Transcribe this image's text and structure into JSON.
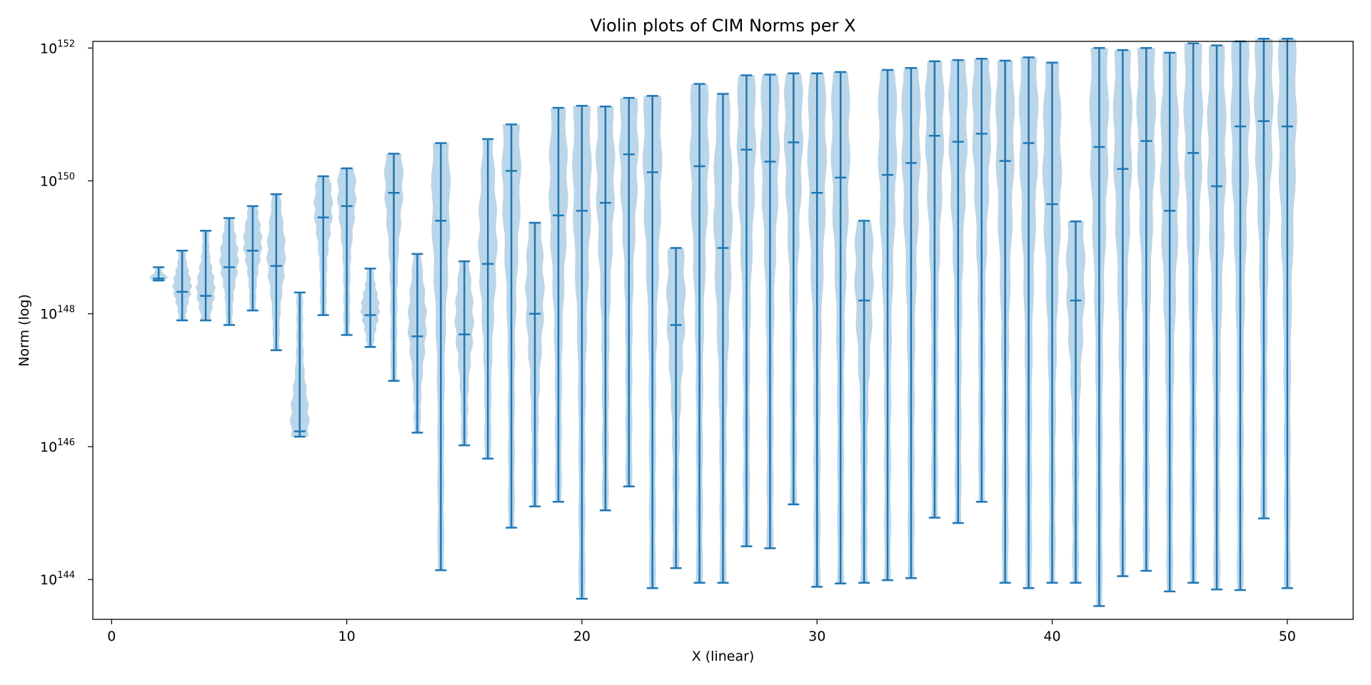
{
  "chart_data": {
    "type": "violin",
    "title": "Violin plots of CIM Norms per X",
    "xlabel": "X (linear)",
    "ylabel": "Norm (log)",
    "xlim": [
      -0.8,
      52.8
    ],
    "ylim_log10": [
      143.4,
      152.1
    ],
    "yscale": "log",
    "x_ticks": [
      0,
      10,
      20,
      30,
      40,
      50
    ],
    "y_ticks": [
      {
        "base": "10",
        "exp": "144"
      },
      {
        "base": "10",
        "exp": "146"
      },
      {
        "base": "10",
        "exp": "148"
      },
      {
        "base": "10",
        "exp": "150"
      },
      {
        "base": "10",
        "exp": "152"
      }
    ],
    "grid": false,
    "colors": {
      "body": "#1f77b4",
      "body_alpha": 0.3,
      "lines": "#1f77b4"
    },
    "violins": [
      {
        "x": 2,
        "min": 148.5,
        "median": 148.53,
        "max": 148.7
      },
      {
        "x": 3,
        "min": 147.9,
        "median": 148.33,
        "max": 148.95
      },
      {
        "x": 4,
        "min": 147.9,
        "median": 148.27,
        "max": 149.25
      },
      {
        "x": 5,
        "min": 147.83,
        "median": 148.7,
        "max": 149.44
      },
      {
        "x": 6,
        "min": 148.05,
        "median": 148.95,
        "max": 149.62
      },
      {
        "x": 7,
        "min": 147.45,
        "median": 148.72,
        "max": 149.8
      },
      {
        "x": 8,
        "min": 146.15,
        "median": 146.23,
        "max": 148.32
      },
      {
        "x": 9,
        "min": 147.98,
        "median": 149.45,
        "max": 150.07
      },
      {
        "x": 10,
        "min": 147.68,
        "median": 149.62,
        "max": 150.19
      },
      {
        "x": 11,
        "min": 147.5,
        "median": 147.98,
        "max": 148.68
      },
      {
        "x": 12,
        "min": 146.99,
        "median": 149.82,
        "max": 150.41
      },
      {
        "x": 13,
        "min": 146.21,
        "median": 147.66,
        "max": 148.9
      },
      {
        "x": 14,
        "min": 144.14,
        "median": 149.4,
        "max": 150.57
      },
      {
        "x": 15,
        "min": 146.02,
        "median": 147.69,
        "max": 148.79
      },
      {
        "x": 16,
        "min": 145.82,
        "median": 148.75,
        "max": 150.63
      },
      {
        "x": 17,
        "min": 144.78,
        "median": 150.15,
        "max": 150.85
      },
      {
        "x": 18,
        "min": 145.1,
        "median": 148.0,
        "max": 149.37
      },
      {
        "x": 19,
        "min": 145.17,
        "median": 149.48,
        "max": 151.1
      },
      {
        "x": 20,
        "min": 143.71,
        "median": 149.55,
        "max": 151.13
      },
      {
        "x": 21,
        "min": 145.04,
        "median": 149.67,
        "max": 151.12
      },
      {
        "x": 22,
        "min": 145.4,
        "median": 150.4,
        "max": 151.25
      },
      {
        "x": 23,
        "min": 143.87,
        "median": 150.13,
        "max": 151.28
      },
      {
        "x": 24,
        "min": 144.17,
        "median": 147.83,
        "max": 148.99
      },
      {
        "x": 25,
        "min": 143.95,
        "median": 150.22,
        "max": 151.46
      },
      {
        "x": 26,
        "min": 143.95,
        "median": 148.99,
        "max": 151.31
      },
      {
        "x": 27,
        "min": 144.5,
        "median": 150.47,
        "max": 151.59
      },
      {
        "x": 28,
        "min": 144.47,
        "median": 150.29,
        "max": 151.6
      },
      {
        "x": 29,
        "min": 145.13,
        "median": 150.58,
        "max": 151.62
      },
      {
        "x": 30,
        "min": 143.89,
        "median": 149.82,
        "max": 151.62
      },
      {
        "x": 31,
        "min": 143.94,
        "median": 150.05,
        "max": 151.64
      },
      {
        "x": 32,
        "min": 143.95,
        "median": 148.2,
        "max": 149.4
      },
      {
        "x": 33,
        "min": 143.99,
        "median": 150.09,
        "max": 151.67
      },
      {
        "x": 34,
        "min": 144.02,
        "median": 150.27,
        "max": 151.7
      },
      {
        "x": 35,
        "min": 144.93,
        "median": 150.68,
        "max": 151.8
      },
      {
        "x": 36,
        "min": 144.85,
        "median": 150.59,
        "max": 151.82
      },
      {
        "x": 37,
        "min": 145.17,
        "median": 150.71,
        "max": 151.84
      },
      {
        "x": 38,
        "min": 143.95,
        "median": 150.3,
        "max": 151.81
      },
      {
        "x": 39,
        "min": 143.87,
        "median": 150.57,
        "max": 151.86
      },
      {
        "x": 40,
        "min": 143.95,
        "median": 149.65,
        "max": 151.78
      },
      {
        "x": 41,
        "min": 143.95,
        "median": 148.2,
        "max": 149.39
      },
      {
        "x": 42,
        "min": 143.6,
        "median": 150.51,
        "max": 152.0
      },
      {
        "x": 43,
        "min": 144.05,
        "median": 150.18,
        "max": 151.97
      },
      {
        "x": 44,
        "min": 144.13,
        "median": 150.6,
        "max": 152.0
      },
      {
        "x": 45,
        "min": 143.82,
        "median": 149.55,
        "max": 151.93
      },
      {
        "x": 46,
        "min": 143.95,
        "median": 150.42,
        "max": 152.07
      },
      {
        "x": 47,
        "min": 143.85,
        "median": 149.92,
        "max": 152.04
      },
      {
        "x": 48,
        "min": 143.84,
        "median": 150.82,
        "max": 152.1
      },
      {
        "x": 49,
        "min": 144.92,
        "median": 150.9,
        "max": 152.14
      },
      {
        "x": 50,
        "min": 143.87,
        "median": 150.82,
        "max": 152.14
      }
    ]
  }
}
